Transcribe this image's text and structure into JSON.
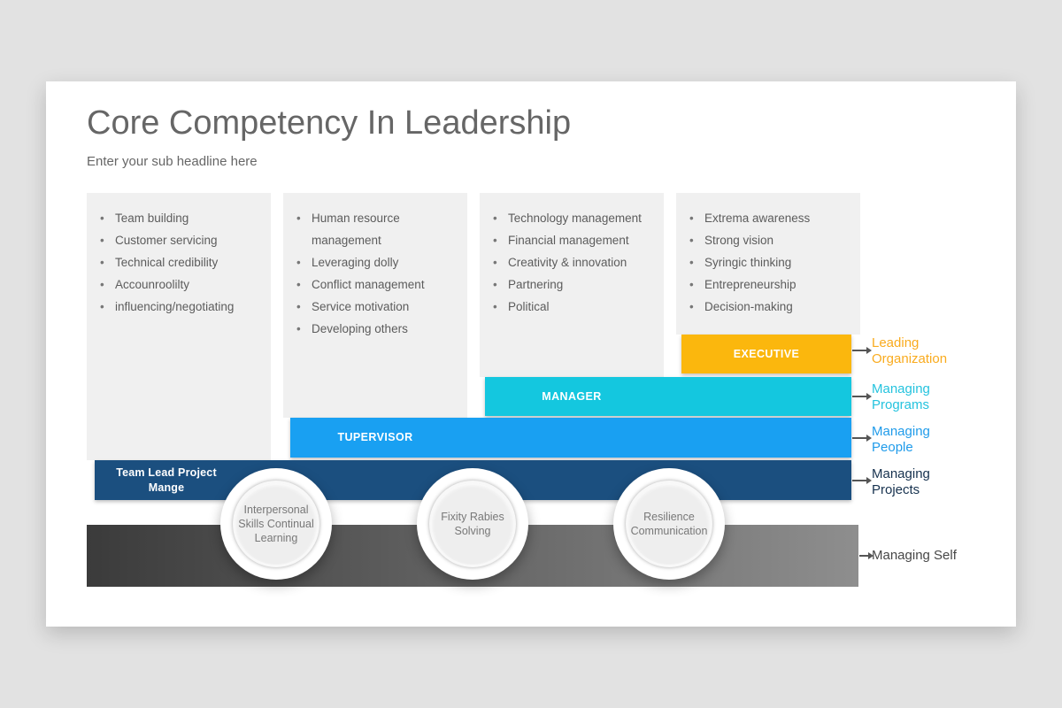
{
  "header": {
    "title": "Core Competency In Leadership",
    "subtitle": "Enter your sub headline here"
  },
  "columns": [
    {
      "items": [
        "Team building",
        "Customer servicing",
        "Technical credibility",
        "Accounroolilty",
        "influencing/negotiating"
      ]
    },
    {
      "items": [
        "Human resource management",
        "Leveraging dolly",
        "Conflict management",
        "Service motivation",
        "Developing others"
      ]
    },
    {
      "items": [
        "Technology management",
        "Financial management",
        "Creativity & innovation",
        "Partnering",
        "Political"
      ]
    },
    {
      "items": [
        "Extrema awareness",
        "Strong vision",
        "Syringic thinking",
        "Entrepreneurship",
        "Decision-making"
      ]
    }
  ],
  "levels": {
    "executive": {
      "label": "EXECUTIVE",
      "color": "#fbb70d",
      "side_label": "Leading\nOrganization",
      "side_color": "#f9ab1e"
    },
    "manager": {
      "label": "MANAGER",
      "color": "#14c7df",
      "side_label": "Managing\nPrograms",
      "side_color": "#25c3de"
    },
    "supervisor": {
      "label": "TUPERVISOR",
      "color": "#19a0f2",
      "side_label": "Managing\nPeople",
      "side_color": "#1f9bea"
    },
    "team_lead": {
      "label": "Team Lead Project\nMange",
      "color": "#1b4f7f",
      "side_label": "Managing\nProjects",
      "side_color": "#17324f"
    },
    "self": {
      "side_label": "Managing Self",
      "side_color": "#474747",
      "gradient_left": "#3b3b3b",
      "gradient_right": "#8e8e8e"
    }
  },
  "circles": [
    {
      "label": "Interpersonal\nSkills Continual\nLearning"
    },
    {
      "label": "Fixity Rabies\nSolving"
    },
    {
      "label": "Resilience\nCommunication"
    }
  ]
}
